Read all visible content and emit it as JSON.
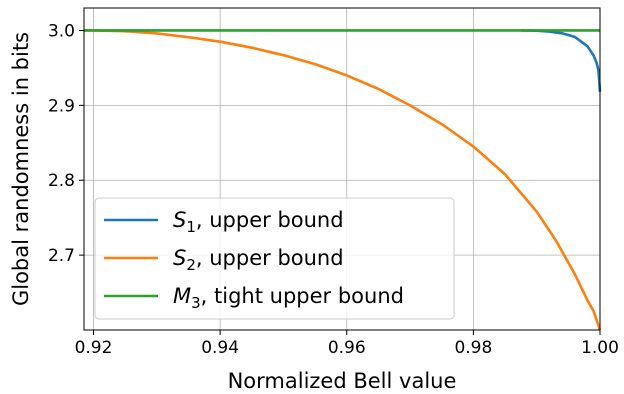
{
  "chart_data": {
    "type": "line",
    "title": "",
    "xlabel": "Normalized Bell value",
    "ylabel": "Global randomness in bits",
    "xlim": [
      0.9185,
      1.0
    ],
    "ylim": [
      2.6,
      3.03
    ],
    "x_ticks": [
      0.92,
      0.94,
      0.96,
      0.98,
      1.0
    ],
    "x_tick_labels": [
      "0.92",
      "0.94",
      "0.96",
      "0.98",
      "1.00"
    ],
    "y_ticks": [
      2.7,
      2.8,
      2.9,
      3.0
    ],
    "y_tick_labels": [
      "2.7",
      "2.8",
      "2.9",
      "3.0"
    ],
    "grid": true,
    "legend_position": "lower-left",
    "series": [
      {
        "name_symbol": "S",
        "name_subscript": "1",
        "name_rest": ", upper bound",
        "color": "#1f77b4",
        "x": [
          0.9875,
          0.99,
          0.992,
          0.994,
          0.996,
          0.998,
          0.999,
          0.9995,
          0.99975,
          1.0
        ],
        "y": [
          3.0,
          2.9997,
          2.9985,
          2.9962,
          2.9915,
          2.979,
          2.9665,
          2.956,
          2.947,
          2.918
        ]
      },
      {
        "name_symbol": "S",
        "name_subscript": "2",
        "name_rest": ", upper bound",
        "color": "#ff7f0e",
        "x": [
          0.9185,
          0.92,
          0.925,
          0.93,
          0.935,
          0.94,
          0.945,
          0.95,
          0.955,
          0.96,
          0.965,
          0.97,
          0.975,
          0.98,
          0.985,
          0.99,
          0.993,
          0.996,
          0.998,
          0.999,
          1.0
        ],
        "y": [
          3.0,
          3.0,
          2.999,
          2.996,
          2.991,
          2.985,
          2.977,
          2.967,
          2.955,
          2.94,
          2.922,
          2.9,
          2.875,
          2.845,
          2.808,
          2.758,
          2.72,
          2.675,
          2.64,
          2.625,
          2.6
        ]
      },
      {
        "name_symbol": "M",
        "name_subscript": "3",
        "name_rest": ", tight upper bound",
        "color": "#2ca02c",
        "x": [
          0.9185,
          1.0
        ],
        "y": [
          3.0,
          3.0
        ]
      }
    ]
  }
}
